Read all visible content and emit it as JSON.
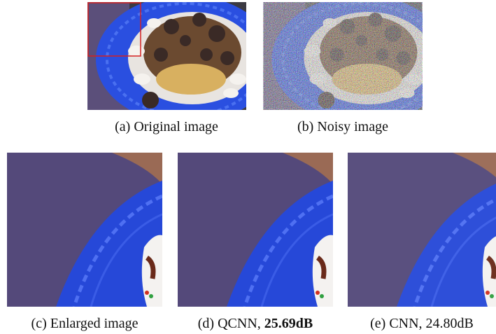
{
  "figure": {
    "panels": [
      {
        "label": "(a)",
        "caption": "Original image"
      },
      {
        "label": "(b)",
        "caption": "Noisy image"
      },
      {
        "label": "(c)",
        "caption": "Enlarged image"
      },
      {
        "label": "(d)",
        "caption": "QCNN,",
        "bold": "25.69dB"
      },
      {
        "label": "(e)",
        "caption": "CNN, 24.80dB"
      }
    ]
  }
}
